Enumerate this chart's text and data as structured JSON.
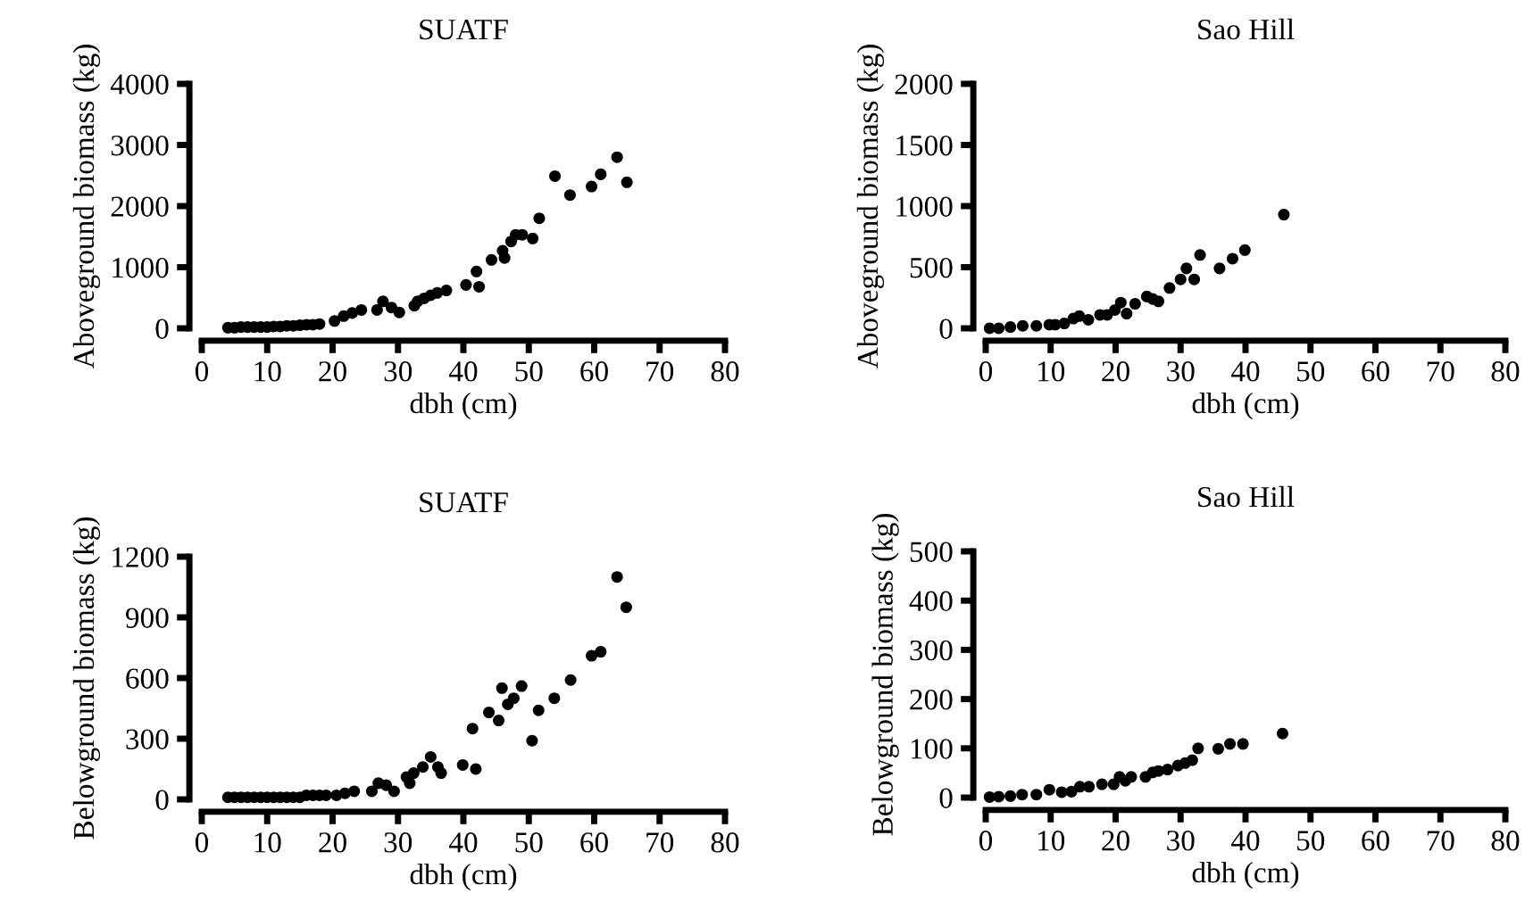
{
  "chart_data": [
    {
      "type": "scatter",
      "title": "SUATF",
      "xlabel": "dbh (cm)",
      "ylabel": "Aboveground biomass (kg)",
      "xlim": [
        0,
        80
      ],
      "ylim": [
        0,
        4000
      ],
      "xticks": [
        0,
        10,
        20,
        30,
        40,
        50,
        60,
        70,
        80
      ],
      "yticks": [
        0,
        1000,
        2000,
        3000,
        4000
      ],
      "grid": false,
      "marker": "circle",
      "series": [
        {
          "color": "#000000",
          "x": [
            4,
            5,
            6,
            7,
            8,
            9,
            10,
            11,
            12,
            13,
            14,
            15,
            16,
            17,
            18,
            20.3,
            21.7,
            23,
            24.4,
            26.8,
            27.7,
            29,
            30.2,
            32.5,
            33,
            34,
            35,
            36,
            37.4,
            40.4,
            42,
            42.4,
            44.3,
            46,
            46.3,
            47.3,
            48,
            49,
            50.6,
            51.6,
            54,
            56.3,
            59.6,
            61,
            63.5,
            65
          ],
          "values": [
            10,
            10,
            20,
            20,
            20,
            20,
            20,
            30,
            30,
            40,
            40,
            50,
            60,
            60,
            70,
            120,
            200,
            250,
            300,
            300,
            440,
            340,
            260,
            370,
            440,
            490,
            540,
            580,
            620,
            710,
            930,
            680,
            1120,
            1270,
            1150,
            1420,
            1530,
            1530,
            1470,
            1800,
            2490,
            2180,
            2320,
            2520,
            2800,
            2390
          ]
        }
      ]
    },
    {
      "type": "scatter",
      "title": "Sao Hill",
      "xlabel": "dbh (cm)",
      "ylabel": "Aboveground biomass (kg)",
      "xlim": [
        0,
        80
      ],
      "ylim": [
        0,
        2000
      ],
      "xticks": [
        0,
        10,
        20,
        30,
        40,
        50,
        60,
        70,
        80
      ],
      "yticks": [
        0,
        500,
        1000,
        1500,
        2000
      ],
      "grid": false,
      "marker": "circle",
      "series": [
        {
          "color": "#000000",
          "x": [
            0.6,
            2,
            3.8,
            5.7,
            7.8,
            9.8,
            10.7,
            12.1,
            13.5,
            14.4,
            15.8,
            17.6,
            18.7,
            19.9,
            20.8,
            21.7,
            23,
            24.8,
            25.7,
            26.6,
            28.3,
            30,
            30.9,
            32.1,
            33,
            36,
            38,
            39.9,
            45.9
          ],
          "values": [
            0,
            0,
            10,
            20,
            20,
            30,
            30,
            40,
            80,
            100,
            70,
            110,
            110,
            150,
            210,
            120,
            200,
            260,
            240,
            220,
            330,
            400,
            490,
            400,
            600,
            490,
            570,
            640,
            930
          ]
        }
      ]
    },
    {
      "type": "scatter",
      "title": "SUATF",
      "xlabel": "dbh (cm)",
      "ylabel": "Belowground biomass (kg)",
      "xlim": [
        0,
        80
      ],
      "ylim": [
        0,
        1200
      ],
      "xticks": [
        0,
        10,
        20,
        30,
        40,
        50,
        60,
        70,
        80
      ],
      "yticks": [
        0,
        300,
        600,
        900,
        1200
      ],
      "grid": false,
      "marker": "circle",
      "series": [
        {
          "color": "#000000",
          "x": [
            4,
            5,
            6,
            7,
            8,
            9,
            10,
            11,
            12,
            13,
            14,
            15,
            16,
            17,
            18,
            19,
            20.6,
            21.9,
            23.3,
            26,
            27,
            28.2,
            29.4,
            31.3,
            31.8,
            32.4,
            33.8,
            35,
            36.1,
            36.6,
            39.9,
            41.4,
            41.9,
            43.9,
            45.4,
            45.9,
            46.8,
            47.7,
            48.9,
            50.5,
            51.5,
            53.9,
            56.4,
            59.6,
            61,
            63.5,
            64.9
          ],
          "values": [
            10,
            10,
            10,
            10,
            10,
            10,
            10,
            10,
            10,
            10,
            10,
            10,
            20,
            20,
            20,
            20,
            20,
            30,
            40,
            40,
            80,
            70,
            40,
            110,
            80,
            130,
            160,
            210,
            160,
            130,
            170,
            350,
            150,
            430,
            390,
            550,
            470,
            500,
            560,
            290,
            440,
            500,
            590,
            710,
            730,
            1100,
            950
          ]
        }
      ]
    },
    {
      "type": "scatter",
      "title": "Sao Hill",
      "xlabel": "dbh (cm)",
      "ylabel": "Belowground biomass (kg)",
      "xlim": [
        0,
        80
      ],
      "ylim": [
        0,
        500
      ],
      "xticks": [
        0,
        10,
        20,
        30,
        40,
        50,
        60,
        70,
        80
      ],
      "yticks": [
        0,
        100,
        200,
        300,
        400,
        500
      ],
      "grid": false,
      "marker": "circle",
      "series": [
        {
          "color": "#000000",
          "x": [
            0.6,
            2,
            3.8,
            5.6,
            7.8,
            9.8,
            11.7,
            13.2,
            14.5,
            15.9,
            17.9,
            19.7,
            20.6,
            21.5,
            22.4,
            24.6,
            25.7,
            26.6,
            28,
            29.6,
            30.7,
            31.8,
            32.7,
            35.8,
            37.6,
            39.6,
            45.7
          ],
          "values": [
            1,
            2,
            3,
            6,
            6,
            16,
            11,
            12,
            22,
            22,
            27,
            27,
            42,
            34,
            42,
            42,
            51,
            54,
            57,
            65,
            70,
            76,
            100,
            99,
            109,
            109,
            130
          ]
        }
      ]
    }
  ]
}
